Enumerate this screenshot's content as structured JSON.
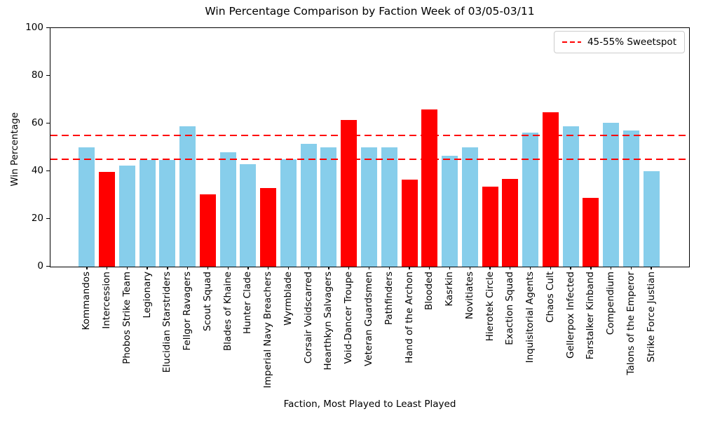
{
  "chart_data": {
    "type": "bar",
    "title": "Win Percentage Comparison by Faction Week of 03/05-03/11",
    "xlabel": "Faction, Most Played to Least Played",
    "ylabel": "Win Percentage",
    "ylim": [
      0,
      100
    ],
    "yticks": [
      0,
      20,
      40,
      60,
      80,
      100
    ],
    "grid": false,
    "categories": [
      "Kommandos",
      "Intercession",
      "Phobos Strike Team",
      "Legionary",
      "Elucidian Starstriders",
      "Fellgor Ravagers",
      "Scout Squad",
      "Blades of Khaine",
      "Hunter Clade",
      "Imperial Navy Breachers",
      "Wyrmblade",
      "Corsair Voidscarred",
      "Hearthkyn Salvagers",
      "Void-Dancer Troupe",
      "Veteran Guardsmen",
      "Pathfinders",
      "Hand of the Archon",
      "Blooded",
      "Kasrkin",
      "Novitiates",
      "Hierotek Circle",
      "Exaction Squad",
      "Inquisitorial Agents",
      "Chaos Cult",
      "Gellerpox Infected",
      "Farstalker Kinband",
      "Compendium",
      "Talons of the Emperor",
      "Strike Force Justian"
    ],
    "values": [
      49.9,
      39.7,
      42.3,
      44.7,
      44.7,
      58.7,
      30.3,
      47.8,
      42.9,
      32.9,
      45.0,
      51.4,
      49.9,
      61.6,
      49.9,
      49.9,
      36.4,
      65.9,
      46.4,
      49.9,
      33.4,
      36.8,
      56.3,
      64.7,
      58.8,
      28.7,
      60.2,
      57.2,
      39.9
    ],
    "bar_colors": [
      "#87CEEB",
      "#FF0000",
      "#87CEEB",
      "#87CEEB",
      "#87CEEB",
      "#87CEEB",
      "#FF0000",
      "#87CEEB",
      "#87CEEB",
      "#FF0000",
      "#87CEEB",
      "#87CEEB",
      "#87CEEB",
      "#FF0000",
      "#87CEEB",
      "#87CEEB",
      "#FF0000",
      "#FF0000",
      "#87CEEB",
      "#87CEEB",
      "#FF0000",
      "#FF0000",
      "#87CEEB",
      "#FF0000",
      "#87CEEB",
      "#FF0000",
      "#87CEEB",
      "#87CEEB",
      "#87CEEB"
    ],
    "reference_lines": [
      {
        "y": 45,
        "color": "#FF0000",
        "style": "dashed"
      },
      {
        "y": 55,
        "color": "#FF0000",
        "style": "dashed"
      }
    ],
    "legend": [
      {
        "label": "45-55% Sweetspot",
        "color": "#FF0000",
        "style": "dashed"
      }
    ],
    "legend_position": "upper right"
  }
}
